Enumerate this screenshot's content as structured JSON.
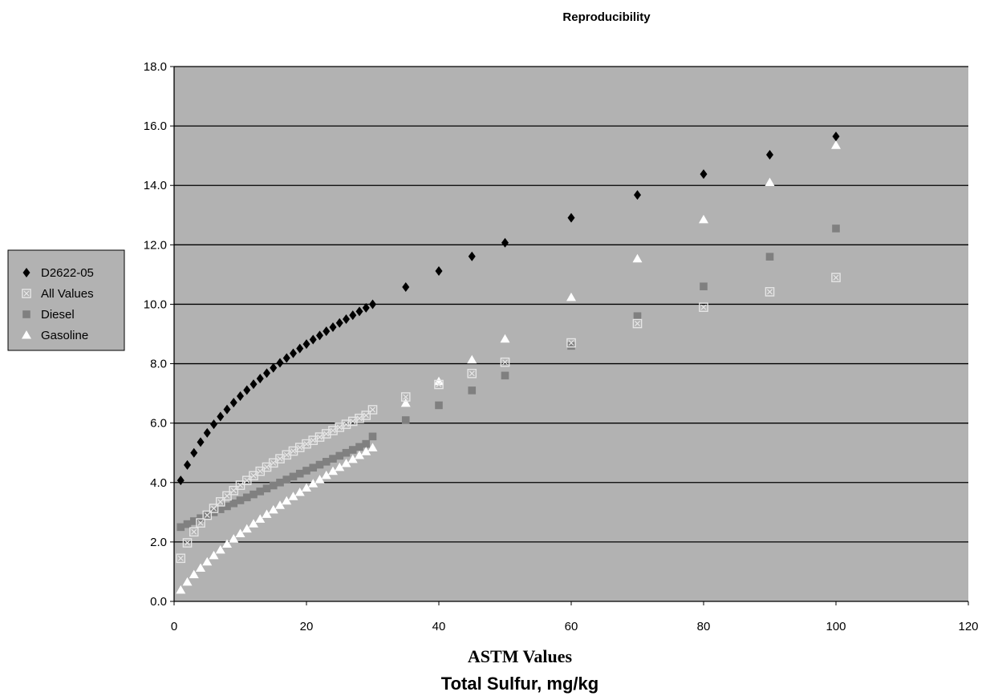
{
  "chart_data": {
    "type": "scatter",
    "title": "Reproducibility",
    "xlabel_line1": "ASTM Values",
    "xlabel_line2": "Total Sulfur, mg/kg",
    "ylabel": "",
    "xlim": [
      0,
      120
    ],
    "ylim": [
      0,
      18
    ],
    "x_ticks": [
      0,
      20,
      40,
      60,
      80,
      100,
      120
    ],
    "y_ticks": [
      0,
      2,
      4,
      6,
      8,
      10,
      12,
      14,
      16,
      18
    ],
    "x_tick_labels": [
      "0",
      "20",
      "40",
      "60",
      "80",
      "100",
      "120"
    ],
    "y_tick_labels": [
      "0.0",
      "2.0",
      "4.0",
      "6.0",
      "8.0",
      "10.0",
      "12.0",
      "14.0",
      "16.0",
      "18.0"
    ],
    "grid": "horizontal",
    "plot_background": "#b2b2b2",
    "legend_position": "left",
    "x": [
      1,
      2,
      3,
      4,
      5,
      6,
      7,
      8,
      9,
      10,
      11,
      12,
      13,
      14,
      15,
      16,
      17,
      18,
      19,
      20,
      21,
      22,
      23,
      24,
      25,
      26,
      27,
      28,
      29,
      30,
      35,
      40,
      45,
      50,
      60,
      70,
      80,
      90,
      100
    ],
    "series": [
      {
        "name": "D2622-05",
        "marker": "diamond",
        "color": "#000000",
        "values": [
          4.07,
          4.59,
          5.0,
          5.36,
          5.67,
          5.96,
          6.22,
          6.46,
          6.69,
          6.91,
          7.11,
          7.31,
          7.5,
          7.68,
          7.86,
          8.03,
          8.19,
          8.35,
          8.51,
          8.66,
          8.81,
          8.95,
          9.09,
          9.23,
          9.37,
          9.5,
          9.63,
          9.76,
          9.88,
          10.0,
          10.58,
          11.12,
          11.61,
          12.07,
          12.91,
          13.68,
          14.38,
          15.03,
          15.65
        ]
      },
      {
        "name": "All Values",
        "marker": "crossed-square",
        "color": "#e6e6e6",
        "values": [
          1.45,
          1.97,
          2.34,
          2.64,
          2.9,
          3.13,
          3.35,
          3.55,
          3.73,
          3.91,
          4.07,
          4.23,
          4.38,
          4.52,
          4.66,
          4.8,
          4.93,
          5.06,
          5.18,
          5.3,
          5.42,
          5.53,
          5.64,
          5.75,
          5.86,
          5.96,
          6.06,
          6.16,
          6.26,
          6.45,
          6.88,
          7.3,
          7.67,
          8.05,
          8.7,
          9.35,
          9.9,
          10.42,
          10.9
        ]
      },
      {
        "name": "Diesel",
        "marker": "square",
        "color": "#808080",
        "values": [
          2.5,
          2.6,
          2.7,
          2.8,
          2.9,
          3.0,
          3.1,
          3.2,
          3.3,
          3.4,
          3.5,
          3.6,
          3.7,
          3.8,
          3.9,
          4.0,
          4.1,
          4.2,
          4.3,
          4.4,
          4.5,
          4.6,
          4.7,
          4.8,
          4.9,
          5.0,
          5.1,
          5.2,
          5.3,
          5.55,
          6.1,
          6.6,
          7.1,
          7.6,
          8.6,
          9.6,
          10.6,
          11.6,
          12.55
        ]
      },
      {
        "name": "Gasoline",
        "marker": "triangle",
        "color": "#ffffff",
        "values": [
          0.38,
          0.65,
          0.9,
          1.12,
          1.33,
          1.54,
          1.73,
          1.93,
          2.1,
          2.28,
          2.44,
          2.61,
          2.77,
          2.93,
          3.08,
          3.23,
          3.38,
          3.53,
          3.67,
          3.82,
          3.96,
          4.1,
          4.24,
          4.38,
          4.51,
          4.64,
          4.78,
          4.91,
          5.04,
          5.17,
          6.67,
          7.4,
          8.13,
          8.83,
          10.23,
          11.53,
          12.85,
          14.1,
          15.35
        ]
      }
    ]
  }
}
